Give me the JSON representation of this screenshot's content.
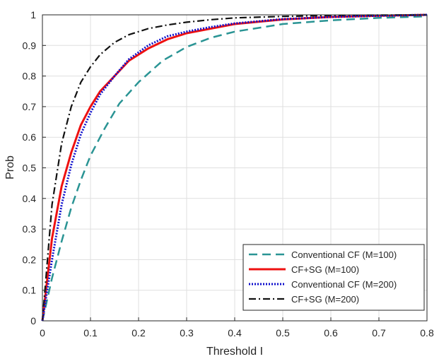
{
  "chart_data": {
    "type": "line",
    "title": "",
    "xlabel": "Threshold I",
    "ylabel": "Prob",
    "xlim": [
      0,
      0.8
    ],
    "ylim": [
      0,
      1
    ],
    "xticks": [
      0,
      0.1,
      0.2,
      0.3,
      0.4,
      0.5,
      0.6,
      0.7,
      0.8
    ],
    "xtick_labels": [
      "0",
      "0.1",
      "0.2",
      "0.3",
      "0.4",
      "0.5",
      "0.6",
      "0.7",
      "0.8"
    ],
    "yticks": [
      0,
      0.1,
      0.2,
      0.3,
      0.4,
      0.5,
      0.6,
      0.7,
      0.8,
      0.9,
      1
    ],
    "ytick_labels": [
      "0",
      "0.1",
      "0.2",
      "0.3",
      "0.4",
      "0.5",
      "0.6",
      "0.7",
      "0.8",
      "0.9",
      "1"
    ],
    "grid": true,
    "legend_position": "bottom-right",
    "series": [
      {
        "name": "Conventional CF (M=100)",
        "color": "#2a9494",
        "style": "dashed",
        "x": [
          0,
          0.02,
          0.04,
          0.06,
          0.08,
          0.1,
          0.13,
          0.16,
          0.2,
          0.25,
          0.3,
          0.35,
          0.4,
          0.5,
          0.6,
          0.7,
          0.8
        ],
        "y": [
          0,
          0.14,
          0.26,
          0.37,
          0.46,
          0.54,
          0.63,
          0.71,
          0.78,
          0.85,
          0.895,
          0.925,
          0.945,
          0.97,
          0.982,
          0.99,
          0.995
        ]
      },
      {
        "name": "CF+SG (M=100)",
        "color": "#ee1111",
        "style": "solid",
        "x": [
          0,
          0.02,
          0.04,
          0.06,
          0.08,
          0.1,
          0.12,
          0.15,
          0.18,
          0.22,
          0.26,
          0.3,
          0.35,
          0.4,
          0.5,
          0.6,
          0.7,
          0.8
        ],
        "y": [
          0,
          0.27,
          0.44,
          0.55,
          0.64,
          0.7,
          0.75,
          0.8,
          0.85,
          0.89,
          0.92,
          0.94,
          0.955,
          0.97,
          0.985,
          0.993,
          0.997,
          1.0
        ]
      },
      {
        "name": "Conventional CF (M=200)",
        "color": "#1111cc",
        "style": "dotted",
        "x": [
          0,
          0.02,
          0.04,
          0.06,
          0.08,
          0.1,
          0.12,
          0.15,
          0.18,
          0.22,
          0.26,
          0.3,
          0.35,
          0.4,
          0.5,
          0.6,
          0.7,
          0.8
        ],
        "y": [
          0,
          0.2,
          0.38,
          0.51,
          0.61,
          0.68,
          0.74,
          0.8,
          0.855,
          0.9,
          0.93,
          0.945,
          0.96,
          0.972,
          0.986,
          0.993,
          0.997,
          1.0
        ]
      },
      {
        "name": "CF+SG (M=200)",
        "color": "#111111",
        "style": "dashdot",
        "x": [
          0,
          0.02,
          0.04,
          0.06,
          0.08,
          0.1,
          0.12,
          0.15,
          0.18,
          0.22,
          0.26,
          0.3,
          0.35,
          0.4,
          0.5,
          0.6,
          0.7,
          0.8
        ],
        "y": [
          0,
          0.38,
          0.58,
          0.7,
          0.78,
          0.83,
          0.87,
          0.91,
          0.935,
          0.955,
          0.967,
          0.976,
          0.984,
          0.99,
          0.995,
          0.998,
          0.999,
          1.0
        ]
      }
    ]
  }
}
